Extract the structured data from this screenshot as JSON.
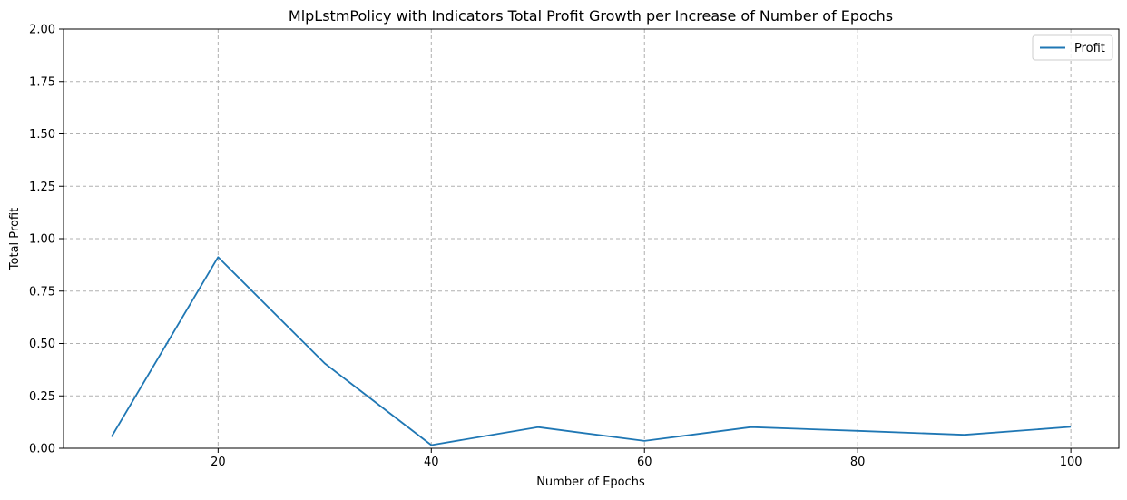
{
  "chart_data": {
    "type": "line",
    "title": "MlpLstmPolicy with Indicators Total Profit Growth per Increase of Number of Epochs",
    "xlabel": "Number of Epochs",
    "ylabel": "Total Profit",
    "x": [
      10,
      20,
      30,
      40,
      50,
      60,
      70,
      80,
      90,
      100
    ],
    "series": [
      {
        "name": "Profit",
        "color": "#1f77b4",
        "values": [
          0.055,
          0.912,
          0.405,
          0.015,
          0.101,
          0.035,
          0.101,
          0.083,
          0.064,
          0.102
        ]
      }
    ],
    "xlim": [
      5.5,
      104.5
    ],
    "ylim": [
      0,
      2.0
    ],
    "xticks": [
      20,
      40,
      60,
      80,
      100
    ],
    "xtick_labels": [
      "20",
      "40",
      "60",
      "80",
      "100"
    ],
    "yticks": [
      0.0,
      0.25,
      0.5,
      0.75,
      1.0,
      1.25,
      1.5,
      1.75,
      2.0
    ],
    "ytick_labels": [
      "0.00",
      "0.25",
      "0.50",
      "0.75",
      "1.00",
      "1.25",
      "1.50",
      "1.75",
      "2.00"
    ],
    "grid": true,
    "grid_style": "dashed",
    "legend_position": "top-right"
  }
}
